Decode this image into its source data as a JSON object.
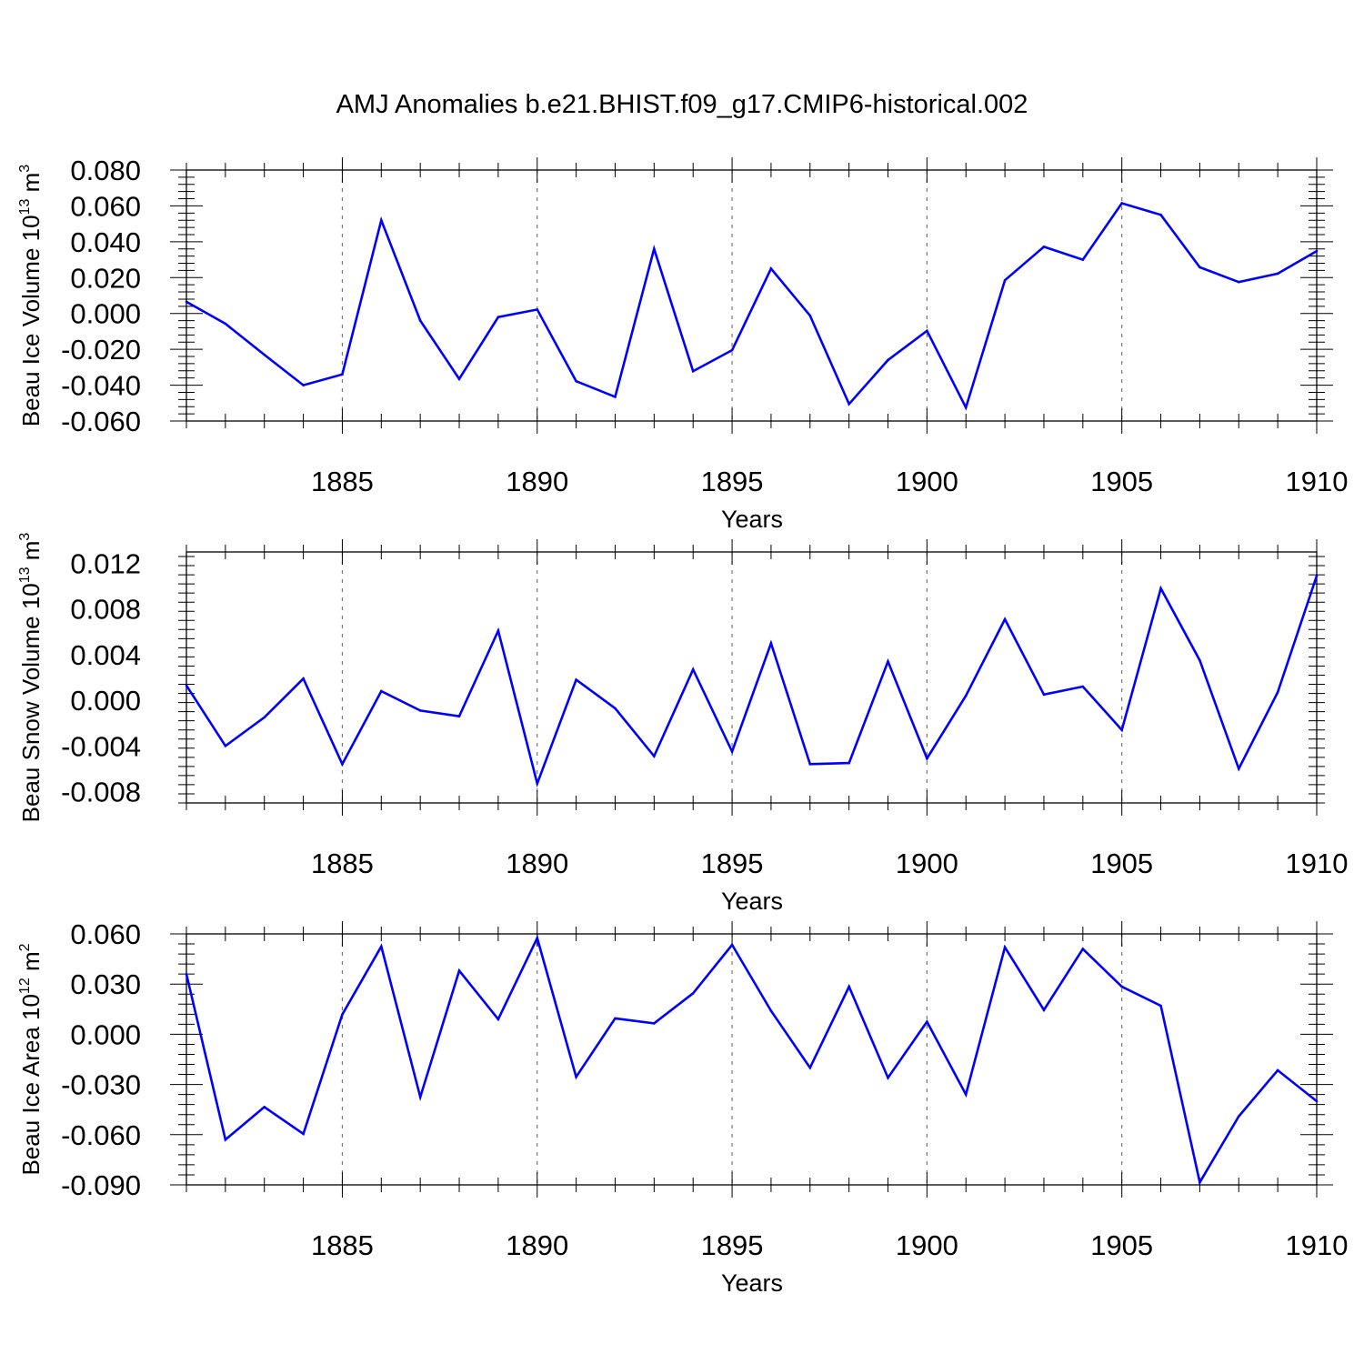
{
  "chart_data": {
    "type": "line",
    "title": "AMJ Anomalies b.e21.BHIST.f09_g17.CMIP6-historical.002",
    "line_color": "#0000FF",
    "x": [
      1881,
      1882,
      1883,
      1884,
      1885,
      1886,
      1887,
      1888,
      1889,
      1890,
      1891,
      1892,
      1893,
      1894,
      1895,
      1896,
      1897,
      1898,
      1899,
      1900,
      1901,
      1902,
      1903,
      1904,
      1905,
      1906,
      1907,
      1908,
      1909,
      1910
    ],
    "xlim": [
      1881,
      1910
    ],
    "xticks": [
      1885,
      1890,
      1895,
      1900,
      1905,
      1910
    ],
    "xtick_labels": [
      "1885",
      "1890",
      "1895",
      "1900",
      "1905",
      "1910"
    ],
    "vertical_gridlines": "dashed at major x ticks",
    "panels": [
      {
        "ylabel_main": "Beau Ice Volume 10",
        "ylabel_exp": "13",
        "ylabel_unit": " m",
        "ylabel_unit_exp": "3",
        "xlabel": "Years",
        "ylim": [
          -0.06,
          0.08
        ],
        "yticks": [
          -0.06,
          -0.04,
          -0.02,
          0.0,
          0.02,
          0.04,
          0.06,
          0.08
        ],
        "ytick_labels": [
          "-0.060",
          "-0.040",
          "-0.020",
          "0.000",
          "0.020",
          "0.040",
          "0.060",
          "0.080"
        ],
        "values": [
          0.0065,
          -0.0057,
          -0.023,
          -0.04,
          -0.034,
          0.052,
          -0.004,
          -0.0365,
          -0.002,
          0.0022,
          -0.0378,
          -0.0465,
          0.036,
          -0.0322,
          -0.0205,
          0.025,
          -0.0012,
          -0.0505,
          -0.026,
          -0.0097,
          -0.0525,
          0.0185,
          0.0372,
          0.03,
          0.0615,
          0.055,
          0.0258,
          0.0175,
          0.0222,
          0.0348
        ]
      },
      {
        "ylabel_main": "Beau Snow Volume 10",
        "ylabel_exp": "13",
        "ylabel_unit": " m",
        "ylabel_unit_exp": "3",
        "xlabel": "Years",
        "ylim": [
          -0.009,
          0.013
        ],
        "yticks": [
          -0.008,
          -0.004,
          0.0,
          0.004,
          0.008,
          0.012
        ],
        "ytick_labels": [
          "-0.008",
          "-0.004",
          "0.000",
          "0.004",
          "0.008",
          "0.012"
        ],
        "values": [
          0.0013,
          -0.004,
          -0.0015,
          0.0019,
          -0.0056,
          0.0008,
          -0.0009,
          -0.0014,
          0.0061,
          -0.0073,
          0.0018,
          -0.0007,
          -0.0049,
          0.0027,
          -0.0045,
          0.005,
          -0.0056,
          -0.0055,
          0.0034,
          -0.0051,
          0.0004,
          0.0071,
          0.0005,
          0.0012,
          -0.0026,
          0.0098,
          0.0035,
          -0.006,
          0.0007,
          0.0109
        ]
      },
      {
        "ylabel_main": "Beau Ice Area 10",
        "ylabel_exp": "12",
        "ylabel_unit": " m",
        "ylabel_unit_exp": "2",
        "xlabel": "Years",
        "ylim": [
          -0.09,
          0.06
        ],
        "yticks": [
          -0.09,
          -0.06,
          -0.03,
          0.0,
          0.03,
          0.06
        ],
        "ytick_labels": [
          "-0.090",
          "-0.060",
          "-0.030",
          "0.000",
          "0.030",
          "0.060"
        ],
        "values": [
          0.036,
          -0.063,
          -0.0435,
          -0.0595,
          0.0118,
          0.0525,
          -0.0375,
          0.038,
          0.009,
          0.0575,
          -0.0255,
          0.0095,
          0.0065,
          0.0245,
          0.0535,
          0.014,
          -0.02,
          0.0285,
          -0.026,
          0.0075,
          -0.036,
          0.052,
          0.0145,
          0.051,
          0.0285,
          0.017,
          -0.0885,
          -0.049,
          -0.0215,
          -0.04
        ]
      }
    ]
  }
}
